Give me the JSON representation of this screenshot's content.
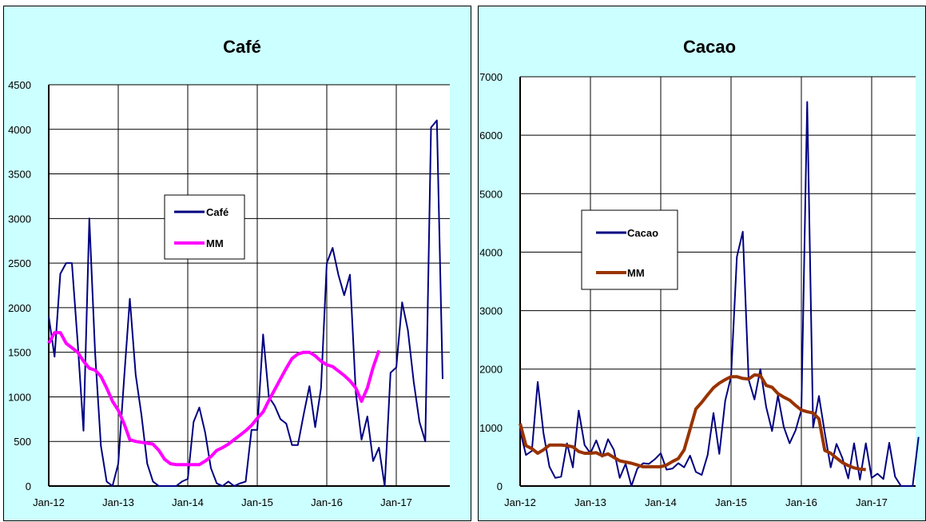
{
  "chart_data": [
    {
      "type": "line",
      "title": "Café",
      "xlabel": "",
      "ylabel": "",
      "ylim": [
        0,
        4500
      ],
      "yticks": [
        0,
        500,
        1000,
        1500,
        2000,
        2500,
        3000,
        3500,
        4000,
        4500
      ],
      "xticks": [
        "Jan-12",
        "Jan-13",
        "Jan-14",
        "Jan-15",
        "Jan-16",
        "Jan-17"
      ],
      "start_month": "2012-01",
      "grid": true,
      "legend_position": "center",
      "series": [
        {
          "name": "Café",
          "color": "#000080",
          "values": [
            1900,
            1450,
            2380,
            2500,
            2500,
            1600,
            620,
            3000,
            1500,
            450,
            50,
            0,
            250,
            1200,
            2100,
            1250,
            800,
            250,
            50,
            0,
            0,
            0,
            0,
            50,
            80,
            720,
            880,
            600,
            200,
            30,
            0,
            50,
            0,
            30,
            50,
            630,
            630,
            1700,
            1000,
            900,
            750,
            700,
            460,
            460,
            800,
            1120,
            660,
            1100,
            2500,
            2670,
            2370,
            2140,
            2370,
            1050,
            520,
            780,
            280,
            430,
            0,
            1270,
            1330,
            2060,
            1750,
            1170,
            720,
            500,
            4020,
            4100,
            1200
          ]
        },
        {
          "name": "MM",
          "color": "#ff00ff",
          "values": [
            1600,
            1720,
            1720,
            1600,
            1550,
            1500,
            1400,
            1320,
            1300,
            1230,
            1100,
            950,
            850,
            700,
            520,
            500,
            490,
            480,
            470,
            400,
            300,
            250,
            240,
            240,
            240,
            240,
            240,
            280,
            330,
            400,
            430,
            470,
            520,
            570,
            620,
            680,
            760,
            830,
            960,
            1080,
            1200,
            1320,
            1430,
            1480,
            1500,
            1500,
            1460,
            1400,
            1360,
            1340,
            1290,
            1240,
            1180,
            1100,
            950,
            1100,
            1330,
            1520
          ]
        }
      ]
    },
    {
      "type": "line",
      "title": "Cacao",
      "xlabel": "",
      "ylabel": "",
      "ylim": [
        0,
        7000
      ],
      "yticks": [
        0,
        1000,
        2000,
        3000,
        4000,
        5000,
        6000,
        7000
      ],
      "xticks": [
        "Jan-12",
        "Jan-13",
        "Jan-14",
        "Jan-15",
        "Jan-16",
        "Jan-17"
      ],
      "start_month": "2012-01",
      "grid": true,
      "legend_position": "left",
      "series": [
        {
          "name": "Cacao",
          "color": "#000080",
          "values": [
            950,
            530,
            600,
            1780,
            900,
            330,
            140,
            160,
            730,
            320,
            1290,
            700,
            560,
            780,
            500,
            800,
            620,
            140,
            380,
            0,
            300,
            390,
            380,
            460,
            560,
            280,
            300,
            390,
            320,
            520,
            240,
            190,
            530,
            1250,
            550,
            1460,
            1870,
            3920,
            4350,
            1820,
            1480,
            2000,
            1350,
            940,
            1550,
            1010,
            730,
            950,
            1300,
            6570,
            1000,
            1540,
            910,
            320,
            720,
            480,
            130,
            730,
            110,
            730,
            140,
            210,
            120,
            740,
            160,
            0,
            0,
            0,
            840
          ]
        },
        {
          "name": "MM",
          "color": "#993300",
          "values": [
            1070,
            690,
            640,
            560,
            620,
            700,
            700,
            700,
            690,
            670,
            590,
            560,
            560,
            570,
            520,
            550,
            490,
            430,
            410,
            390,
            360,
            330,
            330,
            330,
            330,
            360,
            420,
            470,
            620,
            970,
            1320,
            1430,
            1560,
            1680,
            1760,
            1820,
            1870,
            1870,
            1840,
            1830,
            1900,
            1890,
            1720,
            1690,
            1580,
            1520,
            1470,
            1380,
            1300,
            1270,
            1250,
            1150,
            610,
            560,
            480,
            400,
            350,
            310,
            290,
            280
          ]
        }
      ]
    }
  ]
}
